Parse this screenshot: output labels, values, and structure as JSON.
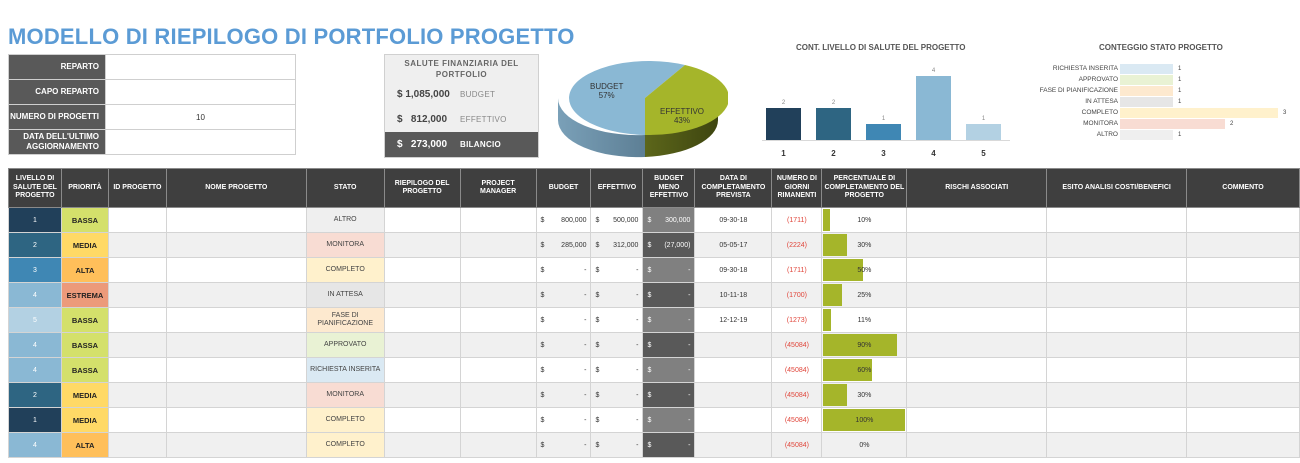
{
  "title": "MODELLO DI RIEPILOGO DI PORTFOLIO PROGETTO",
  "info": [
    {
      "label": "REPARTO",
      "value": ""
    },
    {
      "label": "CAPO REPARTO",
      "value": ""
    },
    {
      "label": "NUMERO DI PROGETTI",
      "value": "10"
    },
    {
      "label": "DATA DELL'ULTIMO AGGIORNAMENTO",
      "value": ""
    }
  ],
  "financial": {
    "title": "SALUTE FINANZIARIA DEL PORTFOLIO",
    "rows": [
      {
        "amount": "$ 1,085,000",
        "label": "BUDGET"
      },
      {
        "amount": "$   812,000",
        "label": "EFFETTIVO"
      },
      {
        "amount": "$   273,000",
        "label": "BILANCIO"
      }
    ]
  },
  "pie": {
    "slices": [
      {
        "name": "BUDGET",
        "pct": "57%",
        "color": "#8ab8d4"
      },
      {
        "name": "EFFETTIVO",
        "pct": "43%",
        "color": "#a5b52a"
      }
    ]
  },
  "chart_data": [
    {
      "type": "pie",
      "title": "",
      "categories": [
        "BUDGET",
        "EFFETTIVO"
      ],
      "values": [
        57,
        43
      ],
      "labels": [
        "BUDGET 57%",
        "EFFETTIVO 43%"
      ]
    },
    {
      "type": "bar",
      "title": "CONT. LIVELLO DI SALUTE DEL PROGETTO",
      "categories": [
        "1",
        "2",
        "3",
        "4",
        "5"
      ],
      "values": [
        2,
        2,
        1,
        4,
        1
      ],
      "colors": [
        "#21405a",
        "#2e6582",
        "#3f87b4",
        "#8ab8d4",
        "#b3d1e3"
      ],
      "xlabel": "",
      "ylabel": "",
      "grid": false
    },
    {
      "type": "bar",
      "orientation": "horizontal",
      "title": "CONTEGGIO STATO PROGETTO",
      "categories": [
        "RICHIESTA INSERITA",
        "APPROVATO",
        "FASE DI PIANIFICAZIONE",
        "IN ATTESA",
        "COMPLETO",
        "MONITORA",
        "ALTRO"
      ],
      "values": [
        1,
        1,
        1,
        1,
        3,
        2,
        1
      ],
      "colors": [
        "#dae9f3",
        "#e9f2d4",
        "#fde9cf",
        "#e6e6e6",
        "#fff1cc",
        "#f8dcd3",
        "#efefef"
      ],
      "grid": false
    }
  ],
  "health_chart": {
    "title": "CONT. LIVELLO DI SALUTE DEL PROGETTO",
    "bars": [
      {
        "cat": "1",
        "val": "2"
      },
      {
        "cat": "2",
        "val": "2"
      },
      {
        "cat": "3",
        "val": "1"
      },
      {
        "cat": "4",
        "val": "4"
      },
      {
        "cat": "5",
        "val": "1"
      }
    ]
  },
  "status_chart": {
    "title": "CONTEGGIO STATO PROGETTO",
    "bars": [
      {
        "cat": "RICHIESTA INSERITA",
        "val": "1"
      },
      {
        "cat": "APPROVATO",
        "val": "1"
      },
      {
        "cat": "FASE DI PIANIFICAZIONE",
        "val": "1"
      },
      {
        "cat": "IN ATTESA",
        "val": "1"
      },
      {
        "cat": "COMPLETO",
        "val": "3"
      },
      {
        "cat": "MONITORA",
        "val": "2"
      },
      {
        "cat": "ALTRO",
        "val": "1"
      }
    ]
  },
  "table": {
    "headers": [
      "LIVELLO DI SALUTE DEL PROGETTO",
      "PRIORITÀ",
      "ID PROGETTO",
      "NOME PROGETTO",
      "STATO",
      "RIEPILOGO DEL PROGETTO",
      "PROJECT MANAGER",
      "BUDGET",
      "EFFETTIVO",
      "BUDGET MENO EFFETTIVO",
      "DATA DI COMPLETAMENTO PREVISTA",
      "NUMERO DI GIORNI RIMANENTI",
      "PERCENTUALE DI COMPLETAMENTO DEL PROGETTO",
      "RISCHI ASSOCIATI",
      "ESITO ANALISI COSTI/BENEFICI",
      "COMMENTO"
    ],
    "rows": [
      {
        "health": "1",
        "priority": "BASSA",
        "id": "",
        "name": "",
        "status": "ALTRO",
        "summary": "",
        "pm": "",
        "budget_cur": "$",
        "budget": "800,000",
        "actual_cur": "$",
        "actual": "500,000",
        "diff_cur": "$",
        "diff": "300,000",
        "date": "09-30-18",
        "days": "(1711)",
        "pct": "10%",
        "risks": "",
        "cost_benefit": "",
        "comment": ""
      },
      {
        "health": "2",
        "priority": "MEDIA",
        "id": "",
        "name": "",
        "status": "MONITORA",
        "summary": "",
        "pm": "",
        "budget_cur": "$",
        "budget": "285,000",
        "actual_cur": "$",
        "actual": "312,000",
        "diff_cur": "$",
        "diff": "(27,000)",
        "date": "05-05-17",
        "days": "(2224)",
        "pct": "30%",
        "risks": "",
        "cost_benefit": "",
        "comment": ""
      },
      {
        "health": "3",
        "priority": "ALTA",
        "id": "",
        "name": "",
        "status": "COMPLETO",
        "summary": "",
        "pm": "",
        "budget_cur": "$",
        "budget": "-",
        "actual_cur": "$",
        "actual": "-",
        "diff_cur": "$",
        "diff": "-",
        "date": "09-30-18",
        "days": "(1711)",
        "pct": "50%",
        "risks": "",
        "cost_benefit": "",
        "comment": ""
      },
      {
        "health": "4",
        "priority": "ESTREMA",
        "id": "",
        "name": "",
        "status": "IN ATTESA",
        "summary": "",
        "pm": "",
        "budget_cur": "$",
        "budget": "-",
        "actual_cur": "$",
        "actual": "-",
        "diff_cur": "$",
        "diff": "-",
        "date": "10-11-18",
        "days": "(1700)",
        "pct": "25%",
        "risks": "",
        "cost_benefit": "",
        "comment": ""
      },
      {
        "health": "5",
        "priority": "BASSA",
        "id": "",
        "name": "",
        "status": "FASE DI PIANIFICAZIONE",
        "summary": "",
        "pm": "",
        "budget_cur": "$",
        "budget": "-",
        "actual_cur": "$",
        "actual": "-",
        "diff_cur": "$",
        "diff": "-",
        "date": "12-12-19",
        "days": "(1273)",
        "pct": "11%",
        "risks": "",
        "cost_benefit": "",
        "comment": ""
      },
      {
        "health": "4",
        "priority": "BASSA",
        "id": "",
        "name": "",
        "status": "APPROVATO",
        "summary": "",
        "pm": "",
        "budget_cur": "$",
        "budget": "-",
        "actual_cur": "$",
        "actual": "-",
        "diff_cur": "$",
        "diff": "-",
        "date": "",
        "days": "(45084)",
        "pct": "90%",
        "risks": "",
        "cost_benefit": "",
        "comment": ""
      },
      {
        "health": "4",
        "priority": "BASSA",
        "id": "",
        "name": "",
        "status": "RICHIESTA INSERITA",
        "summary": "",
        "pm": "",
        "budget_cur": "$",
        "budget": "-",
        "actual_cur": "$",
        "actual": "-",
        "diff_cur": "$",
        "diff": "-",
        "date": "",
        "days": "(45084)",
        "pct": "60%",
        "risks": "",
        "cost_benefit": "",
        "comment": ""
      },
      {
        "health": "2",
        "priority": "MEDIA",
        "id": "",
        "name": "",
        "status": "MONITORA",
        "summary": "",
        "pm": "",
        "budget_cur": "$",
        "budget": "-",
        "actual_cur": "$",
        "actual": "-",
        "diff_cur": "$",
        "diff": "-",
        "date": "",
        "days": "(45084)",
        "pct": "30%",
        "risks": "",
        "cost_benefit": "",
        "comment": ""
      },
      {
        "health": "1",
        "priority": "MEDIA",
        "id": "",
        "name": "",
        "status": "COMPLETO",
        "summary": "",
        "pm": "",
        "budget_cur": "$",
        "budget": "-",
        "actual_cur": "$",
        "actual": "-",
        "diff_cur": "$",
        "diff": "-",
        "date": "",
        "days": "(45084)",
        "pct": "100%",
        "risks": "",
        "cost_benefit": "",
        "comment": ""
      },
      {
        "health": "4",
        "priority": "ALTA",
        "id": "",
        "name": "",
        "status": "COMPLETO",
        "summary": "",
        "pm": "",
        "budget_cur": "$",
        "budget": "-",
        "actual_cur": "$",
        "actual": "-",
        "diff_cur": "$",
        "diff": "-",
        "date": "",
        "days": "(45084)",
        "pct": "0%",
        "risks": "",
        "cost_benefit": "",
        "comment": ""
      }
    ]
  },
  "colors": {
    "health": {
      "1": "#21405a",
      "2": "#2e6582",
      "3": "#3f87b4",
      "4": "#8ab8d4",
      "5": "#b3d1e3"
    },
    "priority": {
      "BASSA": "#d4e06b",
      "MEDIA": "#ffd966",
      "ALTA": "#ffbf5a",
      "ESTREMA": "#ec9a7a"
    },
    "status": {
      "ALTRO": "#efefef",
      "MONITORA": "#f8dcd3",
      "COMPLETO": "#fff1cc",
      "IN ATTESA": "#e6e6e6",
      "FASE DI PIANIFICAZIONE": "#fde9cf",
      "APPROVATO": "#e9f2d4",
      "RICHIESTA INSERITA": "#dae9f3"
    },
    "progress": "#a5b52a",
    "title": "#5b9bd5"
  }
}
